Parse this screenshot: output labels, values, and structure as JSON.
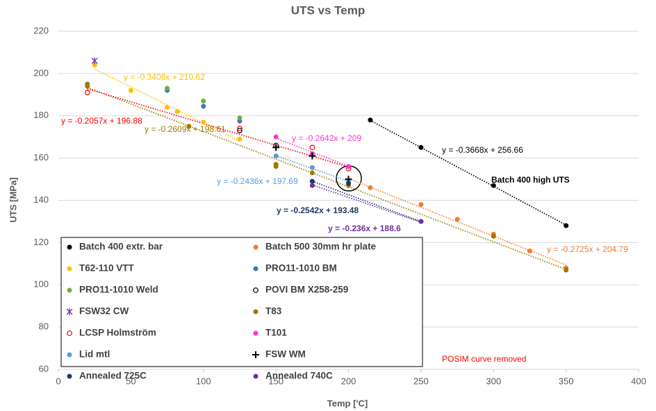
{
  "chart_data": {
    "type": "scatter",
    "title": "UTS vs Temp",
    "x_label": "Temp ['C]",
    "y_label": "UTS [MPa]",
    "xlim": [
      0,
      400
    ],
    "xticks": [
      0,
      50,
      100,
      150,
      200,
      250,
      300,
      350,
      400
    ],
    "ylim": [
      60,
      220
    ],
    "yticks": [
      60,
      80,
      100,
      120,
      140,
      160,
      180,
      200,
      220
    ],
    "grid": true,
    "annotations": [
      "Batch 400 high UTS",
      "POSIM curve removed"
    ],
    "series": [
      {
        "name": "Batch 400 extr. bar",
        "color": "#000000",
        "marker": "circle",
        "x": [
          215,
          250,
          300,
          350
        ],
        "values": [
          178,
          165,
          147,
          128
        ],
        "trendline": {
          "label": "y = -0.3668x + 256.66",
          "slope": -0.3668,
          "intercept": 256.66
        }
      },
      {
        "name": "Batch 500 30mm hr plate",
        "color": "#ed7d31",
        "marker": "circle",
        "x": [
          200,
          215,
          250,
          275,
          300,
          325,
          350
        ],
        "values": [
          147,
          146,
          138,
          131,
          124,
          116,
          108
        ],
        "trendline": {
          "label": "y = -0.2725x + 204.79",
          "slope": -0.2725,
          "intercept": 204.79
        }
      },
      {
        "name": "T62-110 VTT",
        "color": "#ffc000",
        "marker": "circle",
        "x": [
          25,
          50,
          75,
          82,
          100,
          125
        ],
        "values": [
          204,
          192,
          184,
          182,
          177,
          169
        ],
        "trendline": {
          "label": "y = -0.3408x + 210.62",
          "slope": -0.3408,
          "intercept": 210.62
        }
      },
      {
        "name": "PRO11-1010 BM",
        "color": "#4472c4",
        "marker": "circle",
        "x": [
          75,
          100,
          125
        ],
        "values": [
          192,
          184.5,
          177.5
        ]
      },
      {
        "name": "PRO11-1010 Weld",
        "color": "#70ad47",
        "marker": "circle",
        "x": [
          75,
          100,
          125
        ],
        "values": [
          193,
          187,
          179
        ]
      },
      {
        "name": "POVI BM X258-259",
        "color": "#000000",
        "marker": "open-circle",
        "x": [
          125,
          150
        ],
        "values": [
          173,
          166
        ]
      },
      {
        "name": "FSW32 CW",
        "color": "#7030a0",
        "marker": "star",
        "x": [
          25
        ],
        "values": [
          206
        ]
      },
      {
        "name": "T83",
        "color": "#9c7a00",
        "marker": "circle",
        "x": [
          20,
          20,
          90,
          150,
          150,
          175,
          200,
          300,
          350
        ],
        "values": [
          195,
          194,
          175,
          157,
          156,
          153,
          147,
          123,
          107
        ],
        "trendline": {
          "label": "y = -0.2609x + 198.61",
          "slope": -0.2609,
          "intercept": 198.61
        }
      },
      {
        "name": "LCSP Holmström",
        "color": "#ff0000",
        "marker": "open-circle",
        "x": [
          20,
          125,
          175,
          200
        ],
        "values": [
          191,
          174,
          165,
          155
        ],
        "trendline": {
          "label": "y = -0.2057x + 196.88",
          "slope": -0.2057,
          "intercept": 196.88
        }
      },
      {
        "name": "T101",
        "color": "#ff33cc",
        "marker": "circle",
        "x": [
          150,
          175,
          200
        ],
        "values": [
          170,
          162,
          156
        ],
        "trendline": {
          "label": "y = -0.2642x + 209",
          "slope": -0.2642,
          "intercept": 209
        }
      },
      {
        "name": "Lid mtl",
        "color": "#5b9bd5",
        "marker": "circle",
        "x": [
          150,
          175,
          200
        ],
        "values": [
          161,
          155.5,
          149
        ],
        "trendline": {
          "label": "y = -0.2436x + 197.69",
          "slope": -0.2436,
          "intercept": 197.69
        }
      },
      {
        "name": "FSW WM",
        "color": "#000000",
        "marker": "plus",
        "x": [
          150,
          175,
          200
        ],
        "values": [
          165,
          161,
          150
        ]
      },
      {
        "name": "Annealed 725C",
        "color": "#1f3864",
        "marker": "circle",
        "x": [
          175,
          200,
          250
        ],
        "values": [
          149,
          148,
          130
        ],
        "trendline": {
          "label": "y = -0.2542x + 193.48",
          "slope": -0.2542,
          "intercept": 193.48
        }
      },
      {
        "name": "Annealed 740C",
        "color": "#7030a0",
        "marker": "circle",
        "x": [
          175,
          250
        ],
        "values": [
          147,
          130
        ],
        "trendline": {
          "label": "y = -0.236x + 188.6",
          "slope": -0.236,
          "intercept": 188.6
        }
      }
    ]
  }
}
